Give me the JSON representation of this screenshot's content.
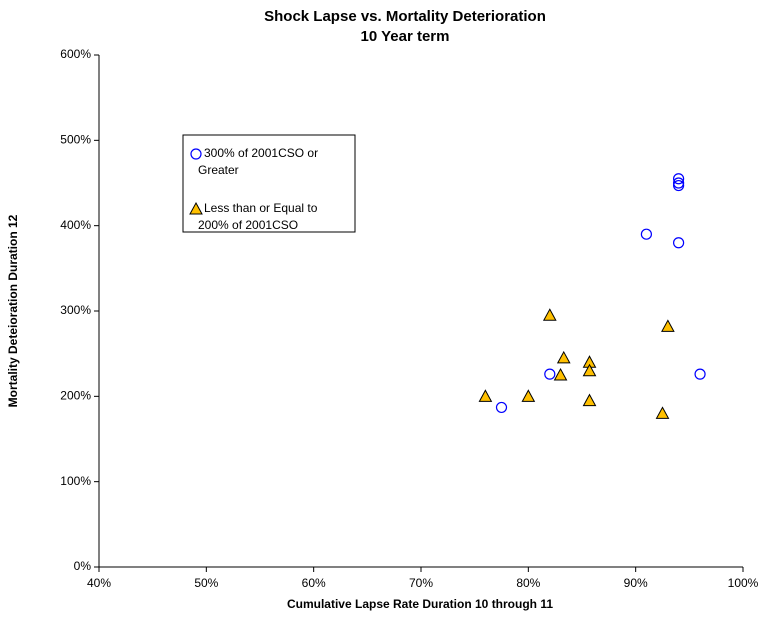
{
  "chart_data": {
    "type": "scatter",
    "title": "Shock Lapse vs. Mortality Deterioration",
    "subtitle": "10 Year term",
    "x_label": "Cumulative Lapse Rate Duration 10 through 11",
    "y_label": "Mortality Deteioration Duration 12",
    "xlim": [
      40,
      100
    ],
    "xticks": [
      {
        "value": 40,
        "label": "40%"
      },
      {
        "value": 50,
        "label": "50%"
      },
      {
        "value": 60,
        "label": "60%"
      },
      {
        "value": 70,
        "label": "70%"
      },
      {
        "value": 80,
        "label": "80%"
      },
      {
        "value": 90,
        "label": "90%"
      },
      {
        "value": 100,
        "label": "100%"
      }
    ],
    "ylim": [
      0,
      600
    ],
    "yticks": [
      {
        "value": 0,
        "label": "0%"
      },
      {
        "value": 100,
        "label": "100%"
      },
      {
        "value": 200,
        "label": "200%"
      },
      {
        "value": 300,
        "label": "300%"
      },
      {
        "value": 400,
        "label": "400%"
      },
      {
        "value": 500,
        "label": "500%"
      },
      {
        "value": 600,
        "label": "600%"
      }
    ],
    "series": [
      {
        "name": "300% of 2001CSO or Greater",
        "marker": "circle",
        "color": "#0000ff",
        "x": [
          77.5,
          82,
          91,
          94,
          94,
          94,
          94,
          96
        ],
        "values": [
          187,
          226,
          390,
          455,
          450,
          447,
          380,
          226
        ]
      },
      {
        "name": "Less than or Equal to 200% of 2001CSO",
        "marker": "triangle",
        "color": "#ffc000",
        "x": [
          76,
          80,
          82,
          83,
          83.3,
          85.7,
          85.7,
          85.7,
          92.5,
          93
        ],
        "values": [
          200,
          200,
          295,
          225,
          245,
          240,
          230,
          195,
          180,
          282
        ]
      }
    ]
  }
}
